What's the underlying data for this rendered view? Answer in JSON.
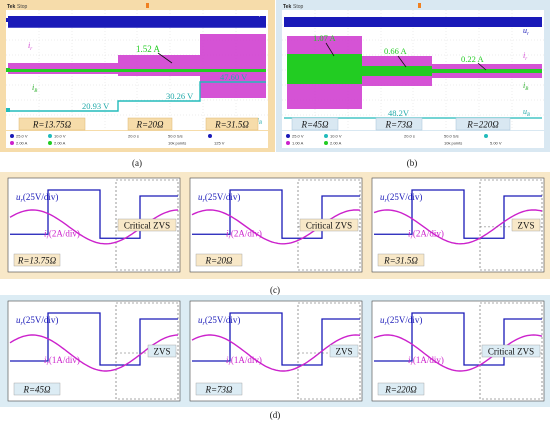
{
  "scope": {
    "brand": "Tek",
    "mode": "Stop"
  },
  "panel_a": {
    "caption": "(a)",
    "trace_labels": {
      "u": "u",
      "u_sub": "r",
      "i": "i",
      "i_sub": "r",
      "ib": "i",
      "ib_sub": "B",
      "ub": "u",
      "ub_sub": "B"
    },
    "current_marker": "1.52 A",
    "voltage_markers": [
      "20.93 V",
      "30.26 V",
      "47.60 V"
    ],
    "loads": [
      "R=13.75Ω",
      "R=20Ω",
      "R=31.5Ω"
    ],
    "status": {
      "ch1": "25.0 V",
      "ch2": "2.00 A",
      "ch3": "2.00 A",
      "ch4": "10.0 V",
      "time": "20.0 s",
      "rate": "50.0 S/s",
      "points": "10k points",
      "trig": "125 V"
    }
  },
  "panel_b": {
    "caption": "(b)",
    "trace_labels": {
      "u": "u",
      "u_sub": "r",
      "i": "i",
      "i_sub": "r",
      "ib": "i",
      "ib_sub": "B",
      "ub": "u",
      "ub_sub": "B"
    },
    "current_markers": [
      "1.07 A",
      "0.66 A",
      "0.22 A"
    ],
    "voltage_marker": "48.2V",
    "loads": [
      "R=45Ω",
      "R=73Ω",
      "R=220Ω"
    ],
    "status": {
      "ch1": "25.0 V",
      "ch2": "1.00 A",
      "ch3": "2.00 A",
      "ch4": "10.0 V",
      "time": "20.0 s",
      "rate": "50.0 S/s",
      "points": "10k points",
      "trig": "5.00 V"
    }
  },
  "panel_c": {
    "caption": "(c)",
    "u_label": "u",
    "u_sub": "r",
    "u_scale": "(25V/div)",
    "i_label": "i",
    "i_sub": "r",
    "i_scale": "(2A/div)",
    "items": [
      {
        "load": "R=13.75Ω",
        "zvs": "Critical ZVS"
      },
      {
        "load": "R=20Ω",
        "zvs": "Critical ZVS"
      },
      {
        "load": "R=31.5Ω",
        "zvs": "ZVS"
      }
    ]
  },
  "panel_d": {
    "caption": "(d)",
    "u_label": "u",
    "u_sub": "r",
    "u_scale": "(25V/div)",
    "i_label": "i",
    "i_sub": "r",
    "i_scale": "(1A/div)",
    "items": [
      {
        "load": "R=45Ω",
        "zvs": "ZVS"
      },
      {
        "load": "R=73Ω",
        "zvs": "ZVS"
      },
      {
        "load": "R=220Ω",
        "zvs": "Critical ZVS"
      }
    ]
  },
  "colors": {
    "voltage": "#1a1ab8",
    "current": "#cc22cc",
    "battery_current": "#22cc22",
    "battery_voltage": "#22bbbb",
    "frame_a": "#f4d9a8",
    "frame_b": "#d9e8f2",
    "frame_c": "#f8e8c8",
    "frame_d": "#dcecf4"
  }
}
